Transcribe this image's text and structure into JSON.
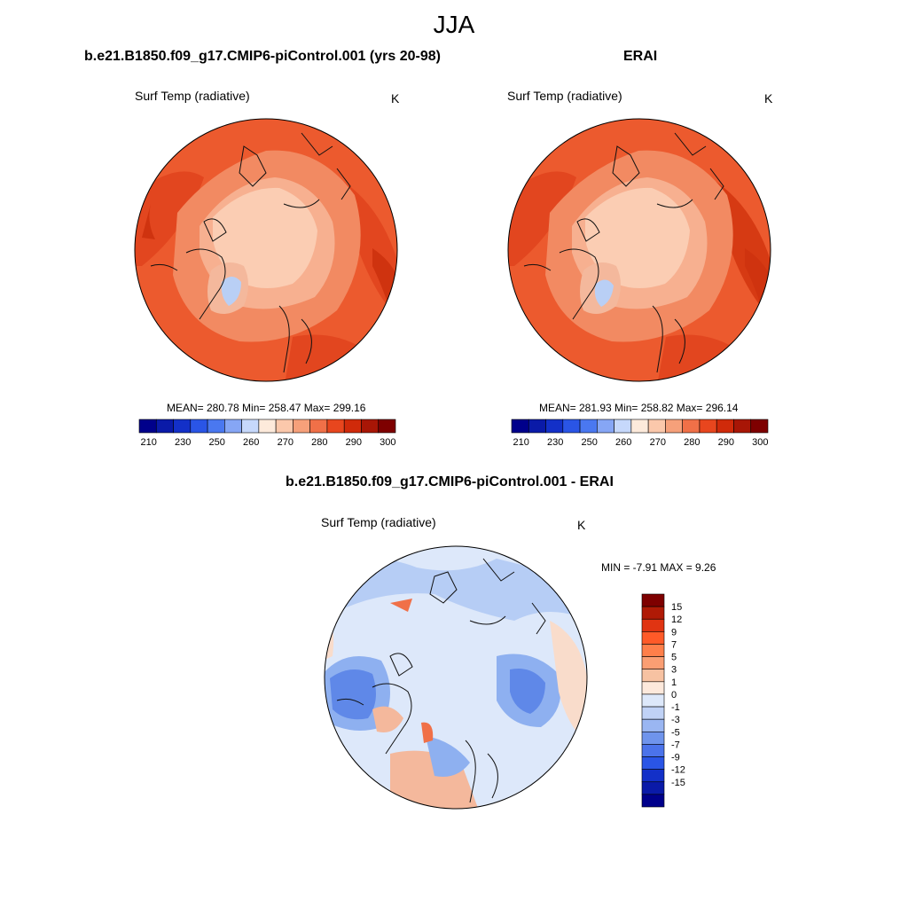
{
  "figure": {
    "title": "JJA"
  },
  "panels": [
    {
      "title": "b.e21.B1850.f09_g17.CMIP6-piControl.001 (yrs 20-98)",
      "variable": "Surf Temp (radiative)",
      "units": "K",
      "stats": "MEAN= 280.78  Min= 258.47  Max= 299.16"
    },
    {
      "title": "ERAI",
      "variable": "Surf Temp (radiative)",
      "units": "K",
      "stats": "MEAN= 281.93  Min= 258.82  Max= 296.14"
    },
    {
      "title": "b.e21.B1850.f09_g17.CMIP6-piControl.001 - ERAI",
      "variable": "Surf Temp (radiative)",
      "units": "K",
      "stats": "MIN =  -7.91 MAX =   9.26"
    }
  ],
  "colorbars": {
    "absolute": {
      "colors": [
        "#00008b",
        "#0a1aa8",
        "#1330c8",
        "#2a55e6",
        "#4a78f0",
        "#86a6f5",
        "#c6d8fb",
        "#fdeadb",
        "#fbc8ab",
        "#f6a07a",
        "#f07048",
        "#e8461e",
        "#d02a0a",
        "#a81606",
        "#7e0000"
      ],
      "tick_labels": [
        "210",
        "230",
        "250",
        "260",
        "270",
        "280",
        "290",
        "300"
      ]
    },
    "difference": {
      "colors": [
        "#7e0000",
        "#b01a06",
        "#e03412",
        "#ff5a28",
        "#ff7f4a",
        "#fa9e73",
        "#f7c2a2",
        "#fde9dc",
        "#dde8fa",
        "#c0d2f6",
        "#9ab6f2",
        "#6f94ec",
        "#4b73ea",
        "#2a55e6",
        "#1330c8",
        "#0a1aa8",
        "#00008b"
      ],
      "tick_labels": [
        "15",
        "12",
        "9",
        "7",
        "5",
        "3",
        "1",
        "0",
        "-1",
        "-3",
        "-5",
        "-7",
        "-9",
        "-12",
        "-15"
      ]
    }
  },
  "map_colors": {
    "abs_warm": "#ec5a2e",
    "abs_warmer": "#e2461f",
    "abs_hot": "#cf330f",
    "abs_mid": "#f28a62",
    "abs_cool": "#f7b090",
    "abs_cold": "#fbcdb3",
    "abs_ice": "#b9cff5",
    "diff_neutral": "#dde8fa",
    "diff_cool1": "#b6cdf5",
    "diff_cool2": "#8eb0f0",
    "diff_cool3": "#5f88e8",
    "diff_warm1": "#f9dccb",
    "diff_warm2": "#f4b89c"
  }
}
